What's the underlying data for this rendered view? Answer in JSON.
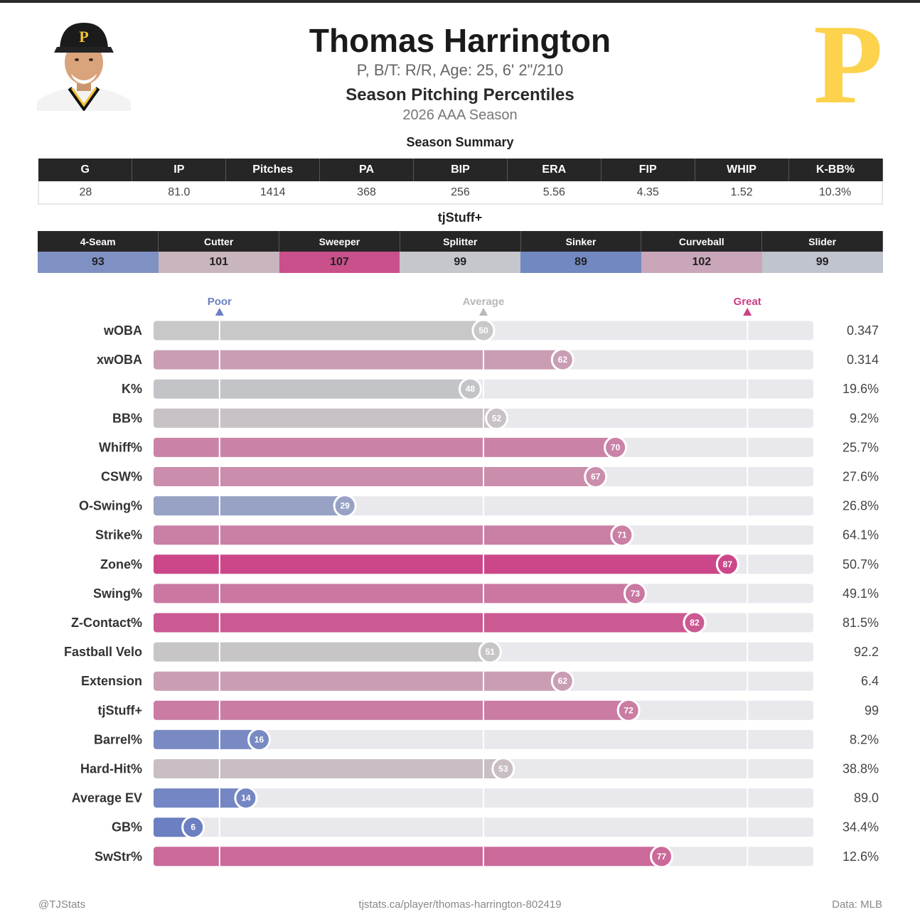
{
  "header": {
    "name": "Thomas Harrington",
    "bio": "P, B/T: R/R, Age: 25, 6' 2\"/210",
    "title": "Season Pitching Percentiles",
    "subtitle": "2026 AAA Season",
    "logo_letter": "P"
  },
  "summary": {
    "title": "Season Summary",
    "headers": [
      "G",
      "IP",
      "Pitches",
      "PA",
      "BIP",
      "ERA",
      "FIP",
      "WHIP",
      "K-BB%"
    ],
    "values": [
      "28",
      "81.0",
      "1414",
      "368",
      "256",
      "5.56",
      "4.35",
      "1.52",
      "10.3%"
    ]
  },
  "tjstuff": {
    "title": "tjStuff+",
    "pitches": [
      {
        "name": "4-Seam",
        "value": "93",
        "color": "#7f91c3"
      },
      {
        "name": "Cutter",
        "value": "101",
        "color": "#c9b5be"
      },
      {
        "name": "Sweeper",
        "value": "107",
        "color": "#c9508a"
      },
      {
        "name": "Splitter",
        "value": "99",
        "color": "#c5c7cc"
      },
      {
        "name": "Sinker",
        "value": "89",
        "color": "#7188c1"
      },
      {
        "name": "Curveball",
        "value": "102",
        "color": "#c9a6b9"
      },
      {
        "name": "Slider",
        "value": "99",
        "color": "#c0c4cd"
      }
    ]
  },
  "chart_data": {
    "type": "bar",
    "orientation": "horizontal",
    "xlim": [
      0,
      100
    ],
    "reference_markers": [
      {
        "label": "Poor",
        "value": 10,
        "color": "#6b7fc2"
      },
      {
        "label": "Average",
        "value": 50,
        "color": "#b8b8b8"
      },
      {
        "label": "Great",
        "value": 90,
        "color": "#cc3d84"
      }
    ],
    "categories": [
      "wOBA",
      "xwOBA",
      "K%",
      "BB%",
      "Whiff%",
      "CSW%",
      "O-Swing%",
      "Strike%",
      "Zone%",
      "Swing%",
      "Z-Contact%",
      "Fastball Velo",
      "Extension",
      "tjStuff+",
      "Barrel%",
      "Hard-Hit%",
      "Average EV",
      "GB%",
      "SwStr%"
    ],
    "percentiles": [
      50,
      62,
      48,
      52,
      70,
      67,
      29,
      71,
      87,
      73,
      82,
      51,
      62,
      72,
      16,
      53,
      14,
      6,
      77
    ],
    "stat_values": [
      "0.347",
      "0.314",
      "19.6%",
      "9.2%",
      "25.7%",
      "27.6%",
      "26.8%",
      "64.1%",
      "50.7%",
      "49.1%",
      "81.5%",
      "92.2",
      "6.4",
      "99",
      "8.2%",
      "38.8%",
      "89.0",
      "34.4%",
      "12.6%"
    ]
  },
  "colors": {
    "poor": "#6b7fc2",
    "average": "#c8c8c8",
    "great": "#cc3d84",
    "track": "#e9e9ed",
    "logo_gold": "#fdd24c"
  },
  "footer": {
    "left": "@TJStats",
    "center": "tjstats.ca/player/thomas-harrington-802419",
    "right": "Data: MLB"
  }
}
